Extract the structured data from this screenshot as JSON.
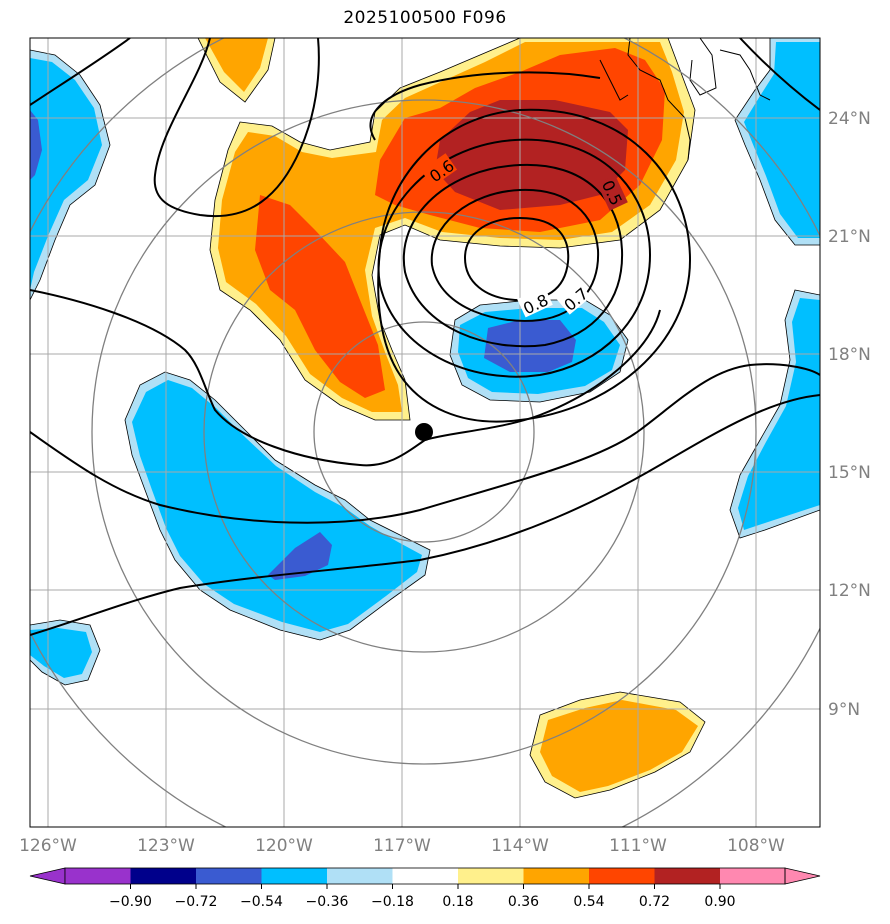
{
  "title": "2025100500 F096",
  "map": {
    "lon_ticks": [
      "126°W",
      "123°W",
      "120°W",
      "117°W",
      "114°W",
      "111°W",
      "108°W"
    ],
    "lat_ticks": [
      "24°N",
      "21°N",
      "18°N",
      "15°N",
      "12°N",
      "9°N"
    ],
    "center_marker": {
      "lon": -116.5,
      "lat": 16.0
    },
    "contour_labels": [
      "0.6",
      "0.5",
      "0.8",
      "0.7"
    ]
  },
  "colorbar": {
    "tick_labels": [
      "−0.90",
      "−0.72",
      "−0.54",
      "−0.36",
      "−0.18",
      "0.18",
      "0.36",
      "0.54",
      "0.72",
      "0.90"
    ],
    "colors": [
      "#9932cc",
      "#00008b",
      "#3a5bd1",
      "#00bfff",
      "#b0e0f6",
      "#ffffff",
      "#fff08c",
      "#ffa500",
      "#ff4500",
      "#b22222",
      "#ff88b0"
    ]
  },
  "colors": {
    "yellow": "#fff08c",
    "orange": "#ffa500",
    "red_orange": "#ff4500",
    "dark_red": "#b22222",
    "light_blue": "#b0e0f6",
    "cyan": "#00bfff",
    "royal_blue": "#3a5bd1",
    "grid": "#a9a9a9",
    "range_rings": "#808080"
  }
}
